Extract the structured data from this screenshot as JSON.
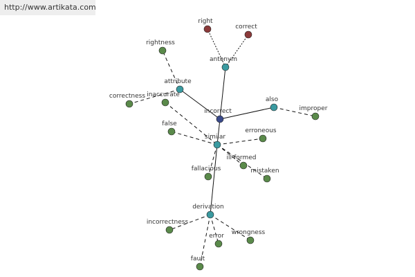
{
  "header": {
    "url": "http://www.artikata.com"
  },
  "nodes": [
    {
      "label": "incorrect"
    },
    {
      "label": "antonym"
    },
    {
      "label": "right"
    },
    {
      "label": "correct"
    },
    {
      "label": "attribute"
    },
    {
      "label": "rightness"
    },
    {
      "label": "correctness"
    },
    {
      "label": "inaccurate"
    },
    {
      "label": "also"
    },
    {
      "label": "improper"
    },
    {
      "label": "similar"
    },
    {
      "label": "false"
    },
    {
      "label": "erroneous"
    },
    {
      "label": "ill-formed"
    },
    {
      "label": "mistaken"
    },
    {
      "label": "fallacious"
    },
    {
      "label": "derivation"
    },
    {
      "label": "incorrectness"
    },
    {
      "label": "error"
    },
    {
      "label": "wrongness"
    },
    {
      "label": "fault"
    }
  ]
}
